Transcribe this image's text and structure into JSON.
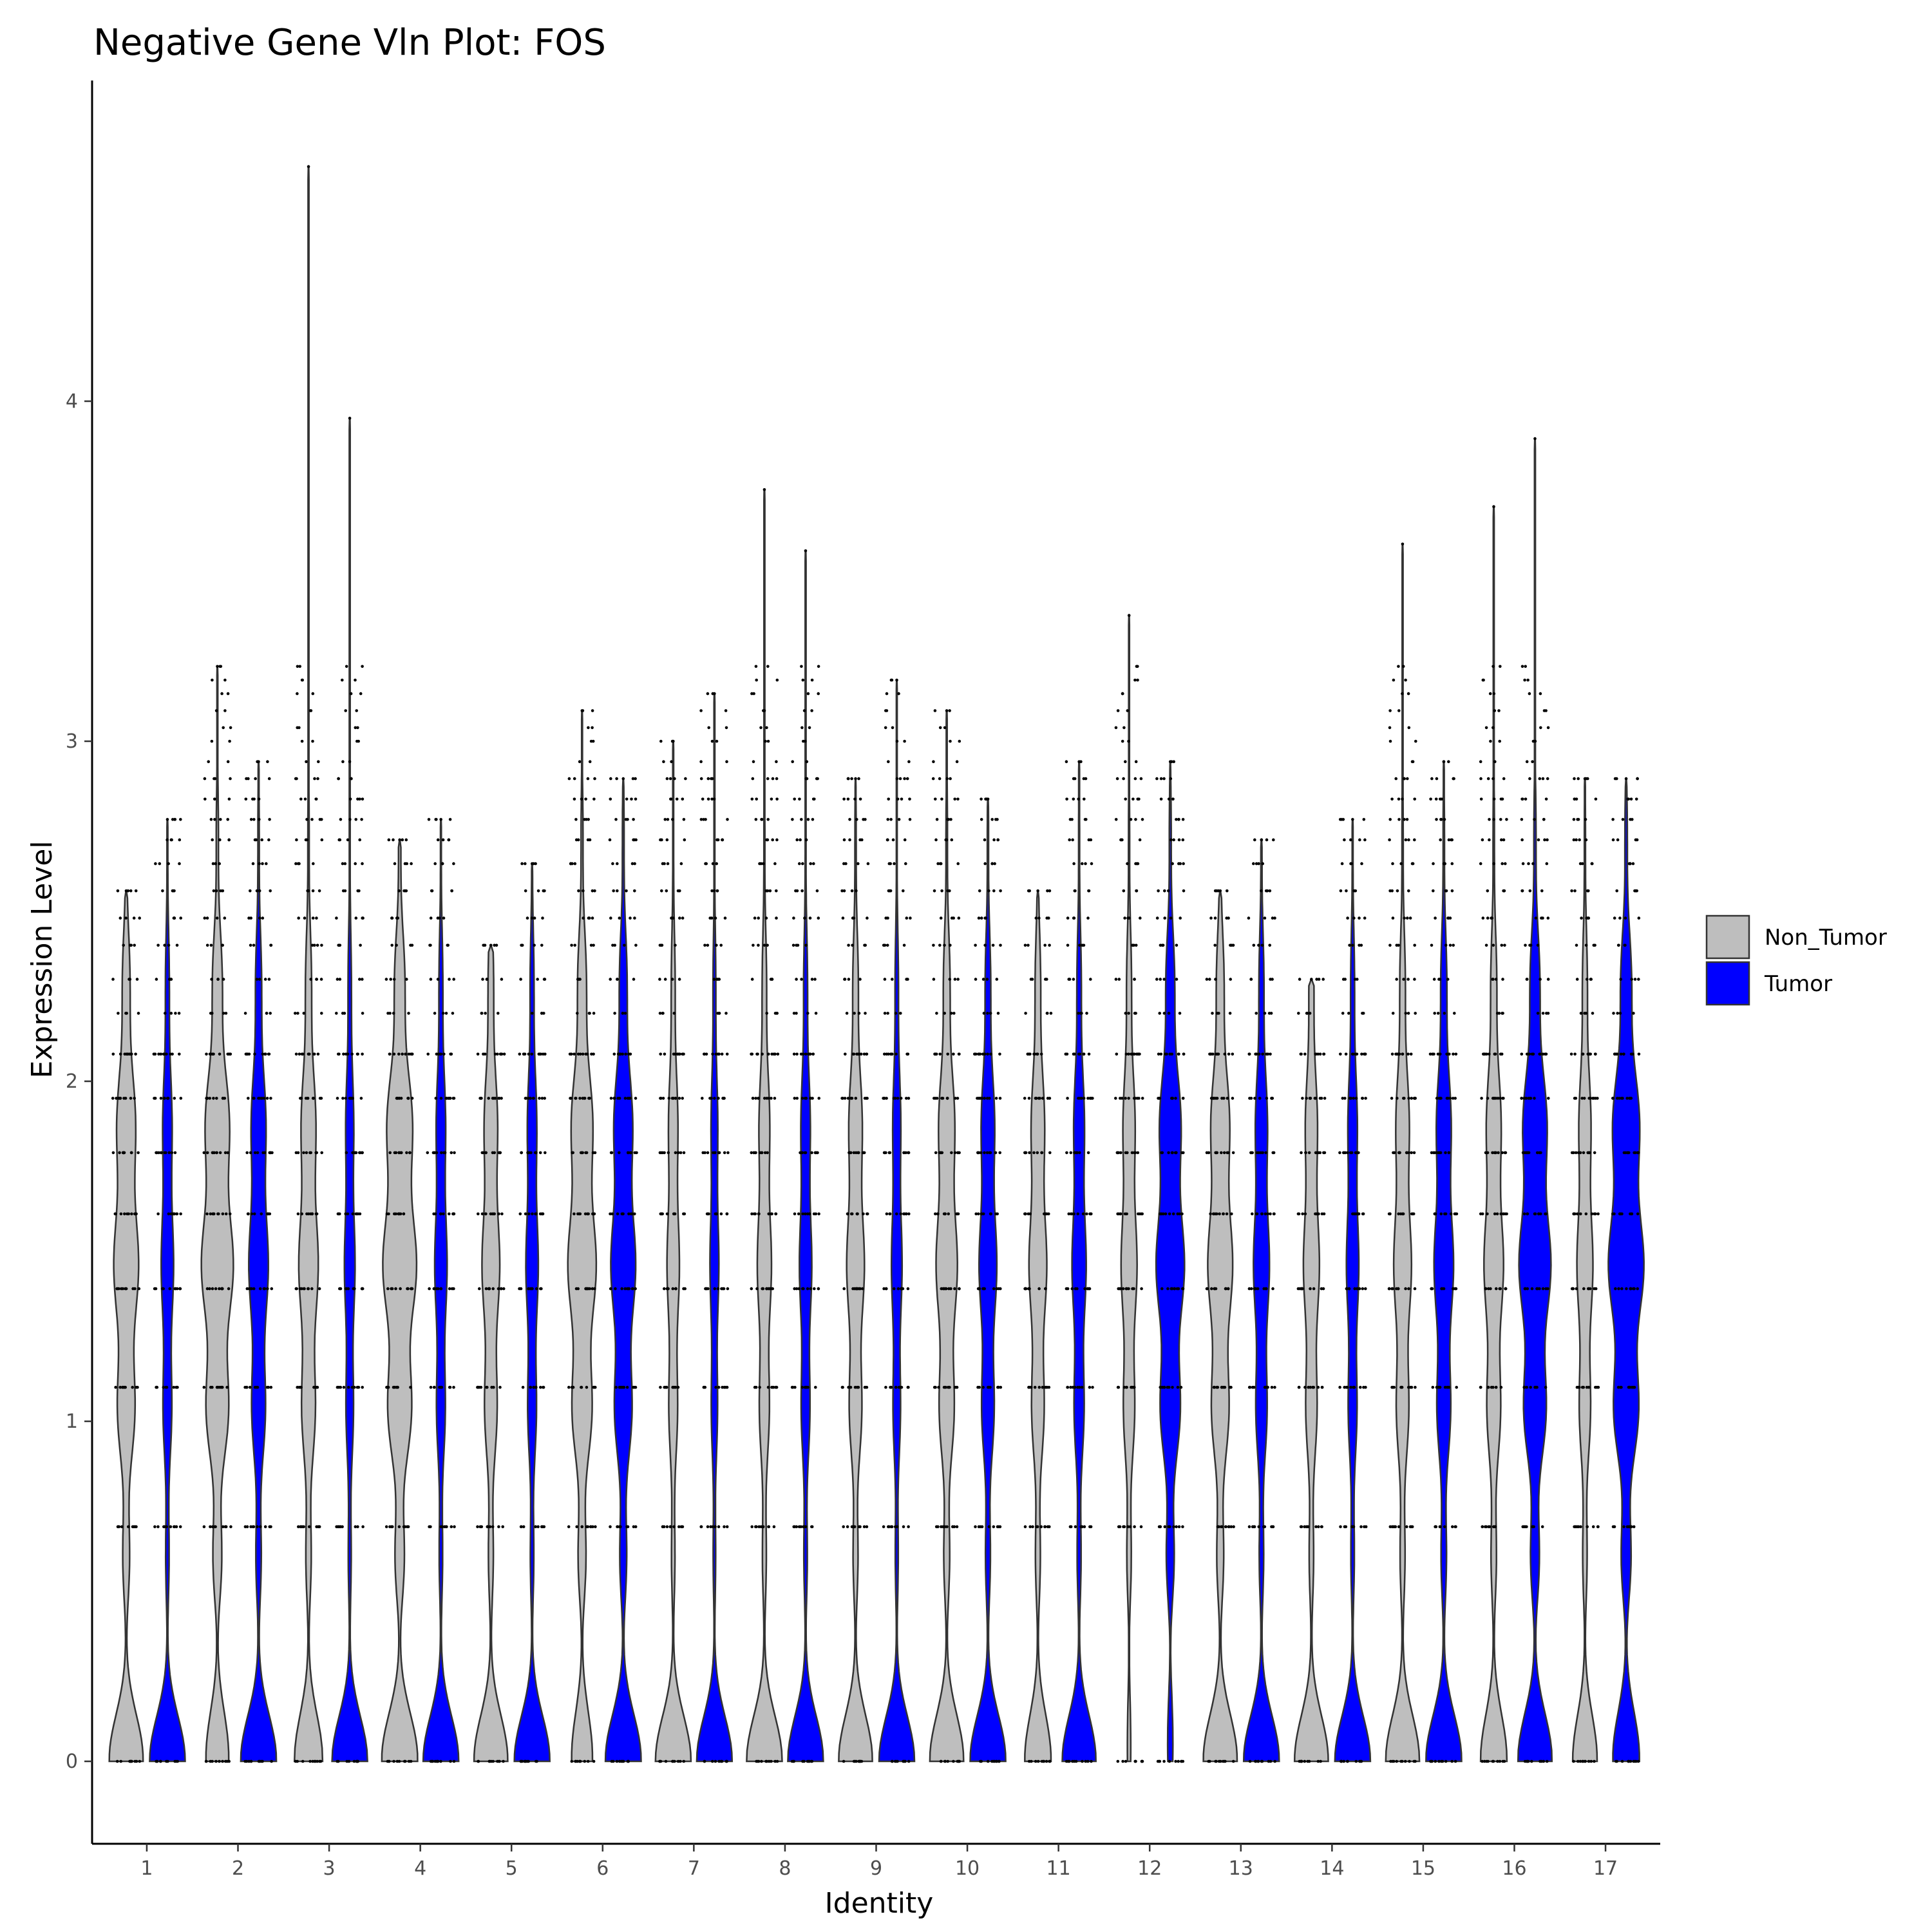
{
  "chart_data": {
    "type": "violin",
    "title": "Negative Gene Vln Plot: FOS",
    "xlabel": "Identity",
    "ylabel": "Expression Level",
    "categories": [
      "1",
      "2",
      "3",
      "4",
      "5",
      "6",
      "7",
      "8",
      "9",
      "10",
      "11",
      "12",
      "13",
      "14",
      "15",
      "16",
      "17"
    ],
    "yticks": [
      0,
      1,
      2,
      3,
      4
    ],
    "ylim": [
      -0.23,
      4.82
    ],
    "colors": {
      "Non_Tumor": "#bebebe",
      "Tumor": "#0000ff"
    },
    "legend": {
      "position": "right",
      "entries": [
        "Non_Tumor",
        "Tumor"
      ]
    },
    "discrete_levels": [
      0,
      0.69,
      1.1,
      1.39,
      1.61,
      1.79,
      1.95,
      2.08,
      2.2,
      2.3,
      2.4,
      2.48,
      2.56,
      2.64,
      2.71,
      2.77,
      2.83,
      2.89,
      2.94,
      3.0,
      3.04,
      3.09,
      3.14,
      3.18,
      3.22
    ],
    "series": [
      {
        "name": "Non_Tumor",
        "max_values": [
          2.56,
          3.22,
          4.69,
          2.71,
          2.4,
          3.09,
          3.0,
          3.74,
          2.89,
          3.09,
          2.56,
          3.37,
          2.56,
          2.3,
          3.58,
          3.69,
          2.89
        ],
        "density_widths": [
          0.7,
          0.9,
          0.55,
          0.95,
          0.5,
          0.8,
          0.35,
          0.4,
          0.5,
          0.6,
          0.5,
          0.45,
          0.7,
          0.45,
          0.5,
          0.55,
          0.45
        ],
        "zero_widths": [
          0.9,
          0.6,
          0.75,
          0.95,
          0.9,
          0.55,
          0.95,
          0.95,
          0.9,
          0.9,
          0.7,
          0.08,
          0.9,
          0.9,
          0.9,
          0.7,
          0.65
        ]
      },
      {
        "name": "Tumor",
        "max_values": [
          2.77,
          2.94,
          3.95,
          2.77,
          2.64,
          2.89,
          3.14,
          3.56,
          3.18,
          2.83,
          2.94,
          2.94,
          2.71,
          2.77,
          2.94,
          3.89,
          2.89
        ],
        "density_widths": [
          0.35,
          0.55,
          0.3,
          0.35,
          0.35,
          0.7,
          0.25,
          0.35,
          0.3,
          0.5,
          0.4,
          0.8,
          0.45,
          0.35,
          0.55,
          0.9,
          1.0
        ],
        "zero_widths": [
          0.95,
          0.95,
          0.95,
          0.95,
          0.95,
          0.95,
          0.95,
          0.95,
          0.95,
          0.95,
          0.9,
          0.12,
          0.95,
          0.95,
          0.95,
          0.9,
          0.7
        ]
      }
    ]
  }
}
